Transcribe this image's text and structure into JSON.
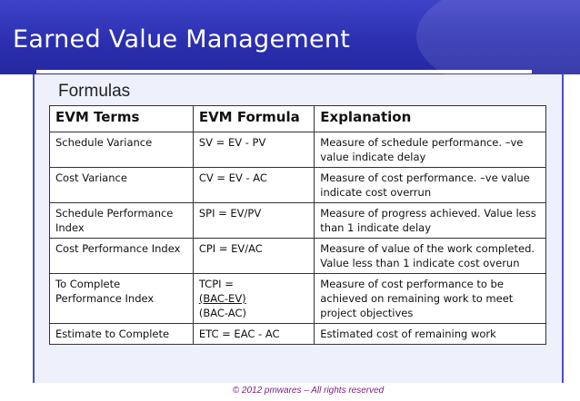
{
  "slide": {
    "title": "Earned Value Management",
    "subtitle": "Formulas",
    "footer": "© 2012 pmwares – All rights reserved"
  },
  "table": {
    "headers": [
      "EVM Terms",
      "EVM Formula",
      "Explanation"
    ],
    "rows": [
      {
        "term": "Schedule Variance",
        "formula": "SV = EV - PV",
        "explanation": "Measure of schedule performance. –ve value indicate delay"
      },
      {
        "term": "Cost Variance",
        "formula": "CV = EV - AC",
        "explanation": "Measure of cost performance. –ve value indicate cost overrun"
      },
      {
        "term": "Schedule Performance Index",
        "formula": "SPI = EV/PV",
        "explanation": "Measure of progress achieved. Value less than 1 indicate delay"
      },
      {
        "term": "Cost Performance Index",
        "formula": "CPI = EV/AC",
        "explanation": "Measure of value of the work completed. Value less than 1 indicate cost overun"
      },
      {
        "term": "To Complete Performance Index",
        "formula_lines": [
          "TCPI =",
          "(BAC-EV)",
          "(BAC-AC)"
        ],
        "explanation": "Measure of cost performance to be achieved on remaining work to meet project objectives"
      },
      {
        "term": "Estimate to Complete",
        "formula": "ETC = EAC - AC",
        "explanation": "Estimated cost of remaining work"
      }
    ]
  },
  "colors": {
    "header": "#2b2fb0",
    "panel": "#eef0fb",
    "footer_text": "#7a1e7a"
  }
}
